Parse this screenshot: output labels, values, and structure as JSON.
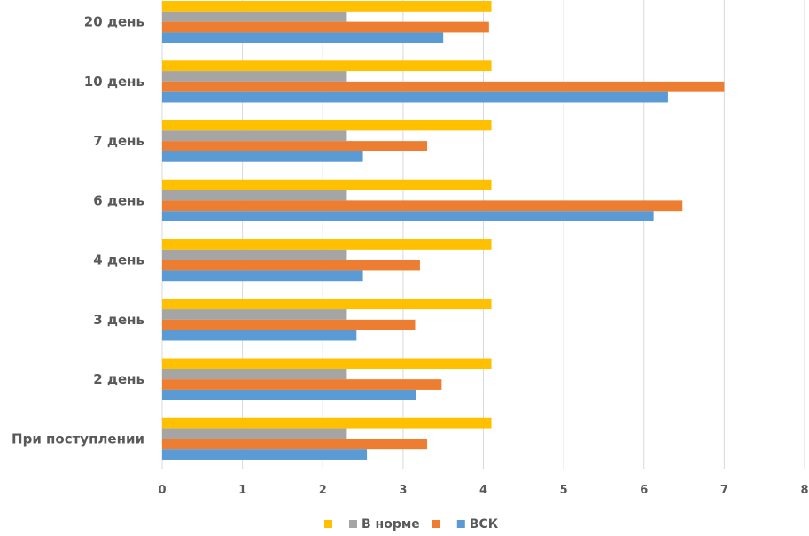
{
  "chart_data": {
    "type": "bar",
    "orientation": "horizontal",
    "title": "",
    "xlabel": "",
    "ylabel": "",
    "categories": [
      "При поступлении",
      "2 день",
      "3 день",
      "4 день",
      "6 день",
      "7 день",
      "10 день",
      "20 день"
    ],
    "series": [
      {
        "name": "",
        "color": "#FFC000",
        "values": [
          4.1,
          4.1,
          4.1,
          4.1,
          4.1,
          4.1,
          4.1,
          4.1
        ]
      },
      {
        "name": "В норме",
        "color": "#A5A5A5",
        "values": [
          2.3,
          2.3,
          2.3,
          2.3,
          2.3,
          2.3,
          2.3,
          2.3
        ]
      },
      {
        "name": "",
        "color": "#ED7D31",
        "values": [
          3.3,
          3.48,
          3.15,
          3.21,
          6.48,
          3.3,
          7.0,
          4.07
        ]
      },
      {
        "name": "ВСК",
        "color": "#5B9BD5",
        "values": [
          2.55,
          3.16,
          2.42,
          2.5,
          6.12,
          2.5,
          6.3,
          3.5
        ]
      }
    ],
    "xlim": [
      0,
      8
    ],
    "xticks": [
      "0",
      "1",
      "2",
      "3",
      "4",
      "5",
      "6",
      "7",
      "8"
    ],
    "grid": true,
    "legend_position": "bottom"
  }
}
